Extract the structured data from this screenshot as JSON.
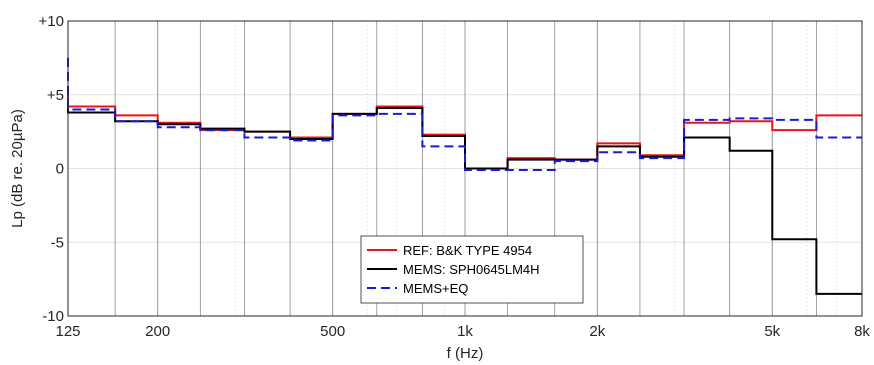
{
  "chart_data": {
    "type": "line",
    "xscale": "log",
    "xlim": [
      125,
      8000
    ],
    "ylim": [
      -10,
      10
    ],
    "xlabel": "f (Hz)",
    "ylabel": "Lp (dB re. 20µPa)",
    "xticks": [
      125,
      200,
      500,
      1000,
      2000,
      5000,
      8000
    ],
    "xtick_labels": [
      "125",
      "200",
      "500",
      "1k",
      "2k",
      "5k",
      "8k"
    ],
    "yticks": [
      -10,
      -5,
      0,
      5,
      10
    ],
    "ytick_labels": [
      "-10",
      "-5",
      "0",
      "+5",
      "+10"
    ],
    "grid": true,
    "legend_position": "bottom-center",
    "band_edges": [
      125,
      160,
      200,
      250,
      315,
      400,
      500,
      630,
      800,
      1000,
      1250,
      1600,
      2000,
      2500,
      3150,
      4000,
      5000,
      6300,
      8000
    ],
    "series": [
      {
        "name": "REF: B&K TYPE 4954",
        "color": "#e8141c",
        "style": "solid",
        "start_value": 5.1,
        "values": [
          4.2,
          3.6,
          3.1,
          2.6,
          2.5,
          2.1,
          3.7,
          4.2,
          2.3,
          0.0,
          0.7,
          0.6,
          1.7,
          0.9,
          3.1,
          3.2,
          2.6,
          3.6
        ]
      },
      {
        "name": "MEMS: SPH0645LM4H",
        "color": "#000000",
        "style": "solid",
        "start_value": 4.3,
        "values": [
          3.8,
          3.2,
          3.0,
          2.7,
          2.5,
          2.0,
          3.7,
          4.1,
          2.2,
          0.0,
          0.6,
          0.6,
          1.5,
          0.8,
          2.1,
          1.2,
          -4.8,
          -8.5
        ]
      },
      {
        "name": "MEMS+EQ",
        "color": "#1a1adb",
        "style": "dashed",
        "start_value": 7.5,
        "values": [
          4.0,
          3.2,
          2.8,
          2.6,
          2.1,
          1.9,
          3.6,
          3.7,
          1.5,
          -0.1,
          -0.1,
          0.5,
          1.1,
          0.7,
          3.3,
          3.4,
          3.3,
          2.1
        ]
      }
    ]
  }
}
